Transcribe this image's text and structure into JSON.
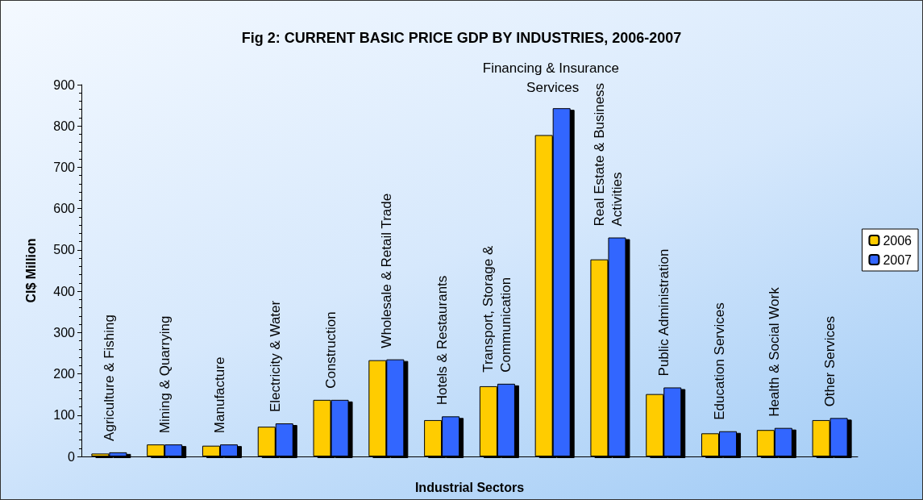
{
  "chart_data": {
    "type": "bar",
    "title": "Fig 2: CURRENT BASIC PRICE GDP BY INDUSTRIES, 2006-2007",
    "xlabel": "Industrial Sectors",
    "ylabel": "CI$ Million",
    "categories": [
      "Agriculture & Fishing",
      "Mining & Quarrying",
      "Manufacture",
      "Electricity & Water",
      "Construction",
      "Wholesale & Retail Trade",
      "Hotels & Restaurants",
      "Transport, Storage & Communication",
      "Financing & Insurance Services",
      "Real Estate & Business Activities",
      "Public Administration",
      "Education Services",
      "Health & Social Work",
      "Other Services"
    ],
    "series": [
      {
        "name": "2006",
        "color": "#ffcc00",
        "values": [
          7,
          29,
          26,
          72,
          137,
          233,
          88,
          170,
          778,
          477,
          151,
          56,
          64,
          88
        ]
      },
      {
        "name": "2007",
        "color": "#3366ff",
        "values": [
          10,
          29,
          29,
          80,
          137,
          235,
          97,
          176,
          843,
          530,
          167,
          61,
          69,
          93
        ]
      }
    ],
    "ylim": [
      0,
      900
    ],
    "yticks": [
      0,
      100,
      200,
      300,
      400,
      500,
      600,
      700,
      800,
      900
    ],
    "grid": false,
    "legend": "right"
  }
}
